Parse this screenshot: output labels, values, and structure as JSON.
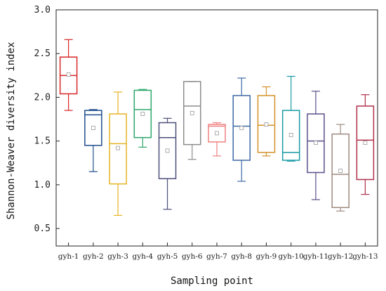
{
  "chart_data": {
    "type": "box",
    "xlabel": "Sampling point",
    "ylabel": "Shannon-Weaver diversity index",
    "ylim": [
      0.3,
      3.0
    ],
    "yticks": [
      "0.5",
      "1.0",
      "1.5",
      "2.0",
      "2.5",
      "3.0"
    ],
    "grid": false,
    "boxes": [
      {
        "category": "gyh-1",
        "color": "#d62728",
        "min": 1.85,
        "q1": 2.04,
        "median": 2.25,
        "q3": 2.46,
        "max": 2.66,
        "mean": 2.26
      },
      {
        "category": "gyh-2",
        "color": "#1f4e8c",
        "min": 1.15,
        "q1": 1.45,
        "median": 1.8,
        "q3": 1.85,
        "max": 1.86,
        "mean": 1.65
      },
      {
        "category": "gyh-3",
        "color": "#e6b422",
        "min": 0.65,
        "q1": 1.01,
        "median": 1.47,
        "q3": 1.81,
        "max": 2.06,
        "mean": 1.42
      },
      {
        "category": "gyh-4",
        "color": "#2ca86b",
        "min": 1.43,
        "q1": 1.54,
        "median": 1.86,
        "q3": 2.08,
        "max": 2.09,
        "mean": 1.81
      },
      {
        "category": "gyh-5",
        "color": "#4b4f7a",
        "min": 0.72,
        "q1": 1.07,
        "median": 1.54,
        "q3": 1.71,
        "max": 1.76,
        "mean": 1.39
      },
      {
        "category": "gyh-6",
        "color": "#8c8c8c",
        "min": 1.29,
        "q1": 1.46,
        "median": 1.9,
        "q3": 2.18,
        "max": 2.18,
        "mean": 1.82
      },
      {
        "category": "gyh-7",
        "color": "#f08080",
        "min": 1.33,
        "q1": 1.49,
        "median": 1.67,
        "q3": 1.69,
        "max": 1.71,
        "mean": 1.59
      },
      {
        "category": "gyh-8",
        "color": "#3f6aa6",
        "min": 1.04,
        "q1": 1.28,
        "median": 1.67,
        "q3": 2.02,
        "max": 2.22,
        "mean": 1.65
      },
      {
        "category": "gyh-9",
        "color": "#d4922a",
        "min": 1.33,
        "q1": 1.37,
        "median": 1.68,
        "q3": 2.02,
        "max": 2.12,
        "mean": 1.69
      },
      {
        "category": "gyh-10",
        "color": "#1a9aa6",
        "min": 1.27,
        "q1": 1.28,
        "median": 1.37,
        "q3": 1.85,
        "max": 2.24,
        "mean": 1.57
      },
      {
        "category": "gyh-11",
        "color": "#5b4e8a",
        "min": 0.83,
        "q1": 1.14,
        "median": 1.5,
        "q3": 1.81,
        "max": 2.07,
        "mean": 1.48
      },
      {
        "category": "gyh-12",
        "color": "#9e8a80",
        "min": 0.7,
        "q1": 0.74,
        "median": 1.12,
        "q3": 1.58,
        "max": 1.69,
        "mean": 1.16
      },
      {
        "category": "gyh-13",
        "color": "#b0304a",
        "min": 0.89,
        "q1": 1.06,
        "median": 1.51,
        "q3": 1.9,
        "max": 2.03,
        "mean": 1.48
      }
    ]
  }
}
